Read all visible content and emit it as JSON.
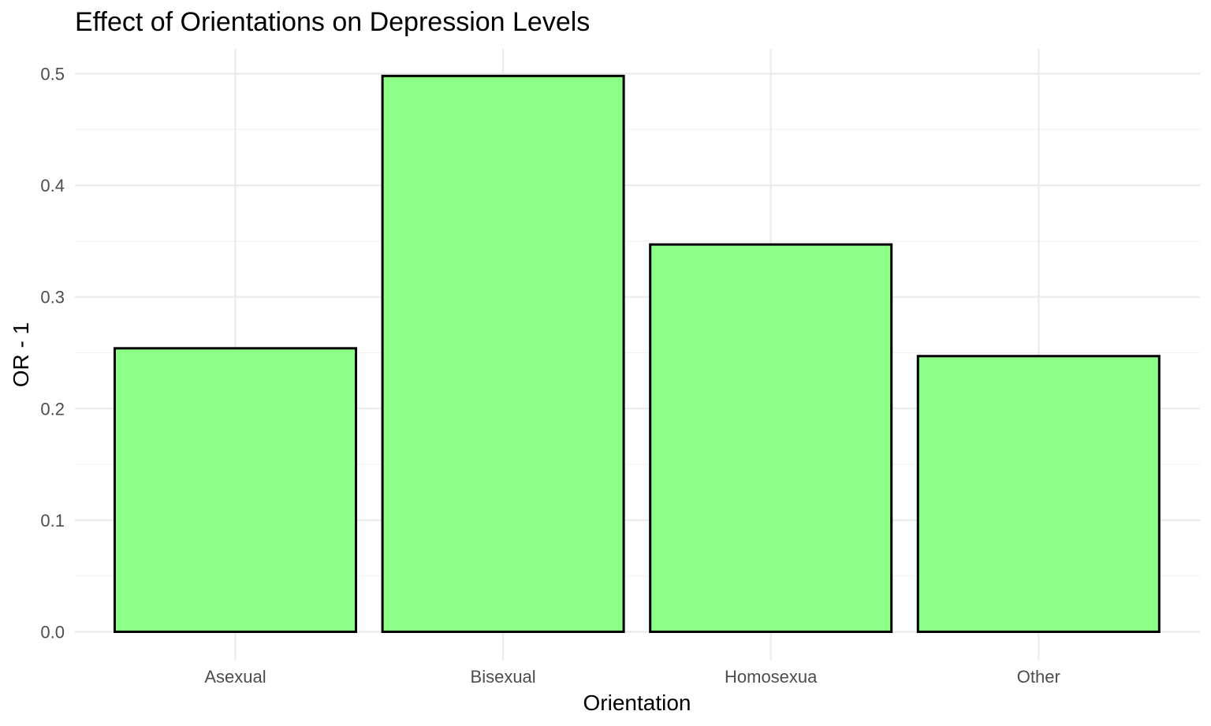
{
  "chart_data": {
    "type": "bar",
    "title": "Effect of Orientations on Depression Levels",
    "xlabel": "Orientation",
    "ylabel": "OR - 1",
    "categories": [
      "Asexual",
      "Bisexual",
      "Homosexua",
      "Other"
    ],
    "values": [
      0.254,
      0.498,
      0.347,
      0.247
    ],
    "ylim": [
      0.0,
      0.5
    ],
    "yticks": [
      "0.0",
      "0.1",
      "0.2",
      "0.3",
      "0.4",
      "0.5"
    ],
    "grid": true,
    "legend": "none",
    "bar_fill": "#8CFF87",
    "bar_outline": "#000000"
  }
}
